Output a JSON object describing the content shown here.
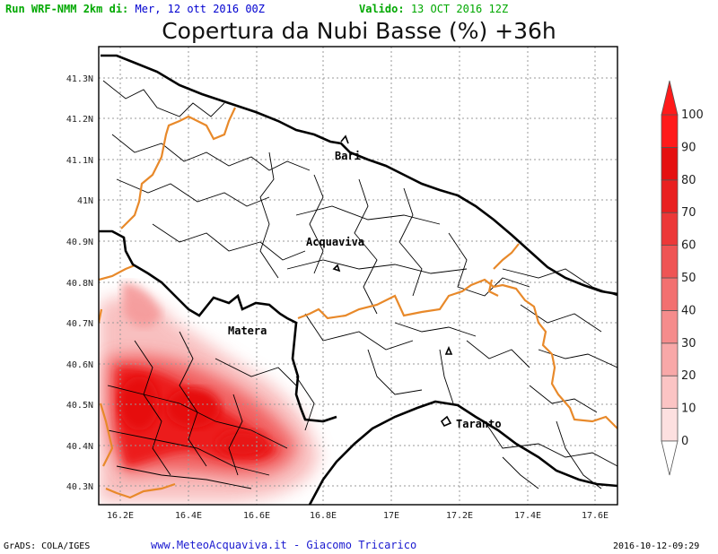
{
  "header": {
    "run_label": "Run WRF-NMM 2km di:",
    "run_date": "Mer, 12 ott 2016 00Z",
    "valid_label": "Valido:",
    "valid_date": "13 OCT 2016 12Z",
    "title": "Copertura da Nubi Basse (%) +36h",
    "colors": {
      "run": "#00b000",
      "date": "#0000d0"
    }
  },
  "map": {
    "lat_labels": [
      "41.3N",
      "41.2N",
      "41.1N",
      "41N",
      "40.9N",
      "40.8N",
      "40.7N",
      "40.6N",
      "40.5N",
      "40.4N",
      "40.3N"
    ],
    "lon_labels": [
      "16.2E",
      "16.4E",
      "16.6E",
      "16.8E",
      "17E",
      "17.2E",
      "17.4E",
      "17.6E"
    ],
    "cities": {
      "bari": "Bari",
      "acquaviva": "Acquaviva",
      "matera": "Matera",
      "taranto": "Taranto"
    },
    "colors": {
      "coast": "#000000",
      "region_border": "#e8892a",
      "muni_border": "#000000",
      "cloud": "#ee1111"
    }
  },
  "colorbar": {
    "labels": [
      "0",
      "10",
      "20",
      "30",
      "40",
      "50",
      "60",
      "70",
      "80",
      "90",
      "100"
    ],
    "colors": [
      "#ffffff",
      "#fde0e0",
      "#fbc4c4",
      "#f8a8a8",
      "#f58c8c",
      "#f27070",
      "#ef5454",
      "#ec3838",
      "#e92020",
      "#e51010",
      "#ff1a1a"
    ]
  },
  "footer": {
    "grads": "GrADS: COLA/IGES",
    "credit": "www.MeteoAcquaviva.it - Giacomo Tricarico",
    "timestamp": "2016-10-12-09:29"
  }
}
